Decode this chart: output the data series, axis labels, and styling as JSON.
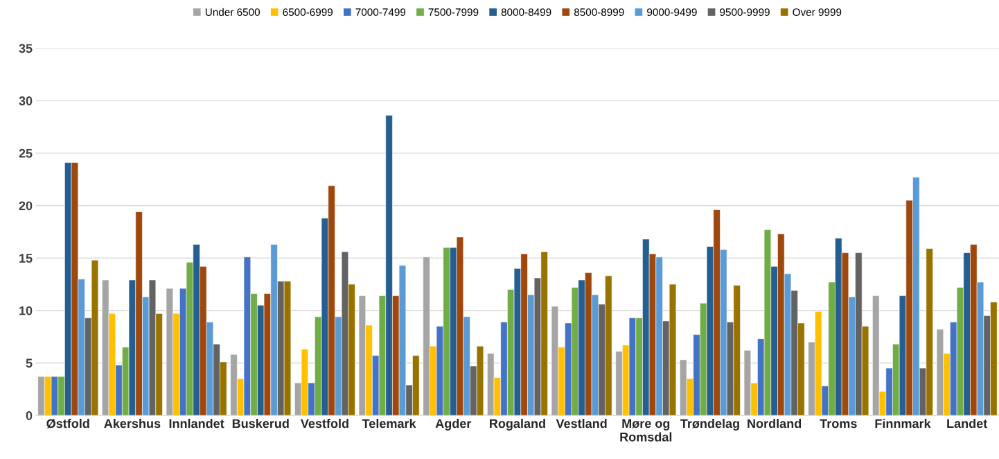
{
  "chart_data": {
    "type": "bar",
    "categories": [
      "Østfold",
      "Akershus",
      "Innlandet",
      "Buskerud",
      "Vestfold",
      "Telemark",
      "Agder",
      "Rogaland",
      "Vestland",
      "Møre og\nRomsdal",
      "Trøndelag",
      "Nordland",
      "Troms",
      "Finnmark",
      "Landet"
    ],
    "series": [
      {
        "name": "Under 6500",
        "color": "#a5a5a5",
        "values": [
          3.7,
          12.9,
          12.1,
          5.8,
          3.1,
          11.4,
          15.1,
          5.9,
          10.4,
          6.1,
          5.3,
          6.2,
          7.0,
          11.4,
          8.2
        ]
      },
      {
        "name": "6500-6999",
        "color": "#ffc000",
        "values": [
          3.7,
          9.7,
          9.7,
          3.5,
          6.3,
          8.6,
          6.6,
          3.6,
          6.5,
          6.7,
          3.5,
          3.1,
          9.9,
          2.3,
          5.9
        ]
      },
      {
        "name": "7000-7499",
        "color": "#4472c4",
        "values": [
          3.7,
          4.8,
          12.1,
          15.1,
          3.1,
          5.7,
          8.5,
          8.9,
          8.8,
          9.3,
          7.7,
          7.3,
          2.8,
          4.5,
          8.9
        ]
      },
      {
        "name": "7500-7999",
        "color": "#70ad47",
        "values": [
          3.7,
          6.5,
          14.6,
          11.6,
          9.4,
          11.4,
          16.0,
          12.0,
          12.2,
          9.3,
          10.7,
          17.7,
          12.7,
          6.8,
          12.2
        ]
      },
      {
        "name": "8000-8499",
        "color": "#255e91",
        "values": [
          24.1,
          12.9,
          16.3,
          10.5,
          18.8,
          28.6,
          16.0,
          14.0,
          12.9,
          16.8,
          16.1,
          14.2,
          16.9,
          11.4,
          15.5
        ]
      },
      {
        "name": "8500-8999",
        "color": "#9e480e",
        "values": [
          24.1,
          19.4,
          14.2,
          11.6,
          21.9,
          11.4,
          17.0,
          15.4,
          13.6,
          15.4,
          19.6,
          17.3,
          15.5,
          20.5,
          16.3
        ]
      },
      {
        "name": "9000-9499",
        "color": "#5b9bd5",
        "values": [
          13.0,
          11.3,
          8.9,
          16.3,
          9.4,
          14.3,
          9.4,
          11.5,
          11.5,
          15.1,
          15.8,
          13.5,
          11.3,
          22.7,
          12.7
        ]
      },
      {
        "name": "9500-9999",
        "color": "#636363",
        "values": [
          9.3,
          12.9,
          6.8,
          12.8,
          15.6,
          2.9,
          4.7,
          13.1,
          10.6,
          9.0,
          8.9,
          11.9,
          15.5,
          4.5,
          9.5
        ]
      },
      {
        "name": "Over 9999",
        "color": "#997300",
        "values": [
          14.8,
          9.7,
          5.1,
          12.8,
          12.5,
          5.7,
          6.6,
          15.6,
          13.3,
          12.5,
          12.4,
          8.8,
          8.5,
          15.9,
          10.8
        ]
      }
    ],
    "ylim": [
      0,
      35
    ],
    "yticks": [
      0,
      5,
      10,
      15,
      20,
      25,
      30,
      35
    ],
    "grid": "y",
    "legend": "top"
  }
}
